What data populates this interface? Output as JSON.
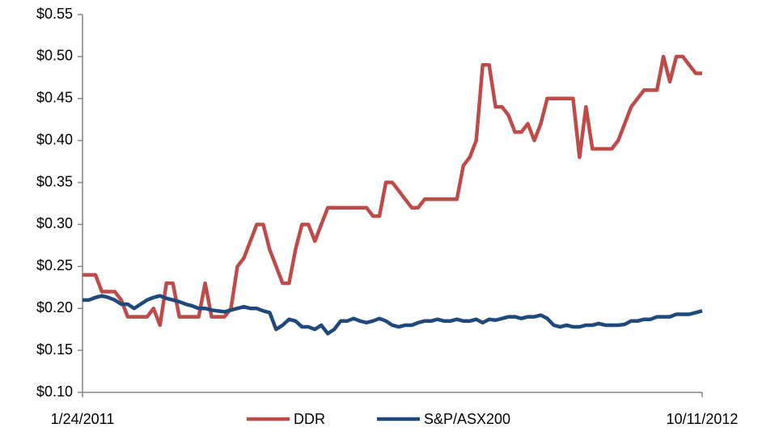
{
  "chart_data": {
    "type": "line",
    "categories": [
      "1/24/2011",
      null,
      null,
      null,
      null,
      null,
      null,
      null,
      null,
      null,
      null,
      null,
      null,
      null,
      null,
      null,
      null,
      null,
      null,
      null,
      null,
      null,
      null,
      null,
      null,
      null,
      null,
      null,
      null,
      null,
      null,
      null,
      null,
      null,
      null,
      null,
      null,
      null,
      null,
      null,
      null,
      null,
      null,
      null,
      null,
      null,
      null,
      null,
      null,
      null,
      null,
      null,
      null,
      null,
      null,
      null,
      null,
      null,
      null,
      null,
      null,
      null,
      null,
      null,
      null,
      null,
      null,
      null,
      null,
      null,
      null,
      null,
      null,
      null,
      null,
      null,
      null,
      null,
      null,
      null,
      null,
      null,
      null,
      null,
      null,
      null,
      null,
      null,
      null,
      null,
      null,
      null,
      null,
      null,
      null,
      null,
      "10/11/2012"
    ],
    "series": [
      {
        "name": "DDR",
        "color": "#be4b48",
        "values": [
          0.24,
          0.24,
          0.24,
          0.22,
          0.22,
          0.22,
          0.21,
          0.19,
          0.19,
          0.19,
          0.19,
          0.2,
          0.18,
          0.23,
          0.23,
          0.19,
          0.19,
          0.19,
          0.19,
          0.23,
          0.19,
          0.19,
          0.19,
          0.2,
          0.25,
          0.26,
          0.28,
          0.3,
          0.3,
          0.27,
          0.25,
          0.23,
          0.23,
          0.27,
          0.3,
          0.3,
          0.28,
          0.3,
          0.32,
          0.32,
          0.32,
          0.32,
          0.32,
          0.32,
          0.32,
          0.31,
          0.31,
          0.35,
          0.35,
          0.34,
          0.33,
          0.32,
          0.32,
          0.33,
          0.33,
          0.33,
          0.33,
          0.33,
          0.33,
          0.37,
          0.38,
          0.4,
          0.49,
          0.49,
          0.44,
          0.44,
          0.43,
          0.41,
          0.41,
          0.42,
          0.4,
          0.42,
          0.45,
          0.45,
          0.45,
          0.45,
          0.45,
          0.38,
          0.44,
          0.39,
          0.39,
          0.39,
          0.39,
          0.4,
          0.42,
          0.44,
          0.45,
          0.46,
          0.46,
          0.46,
          0.5,
          0.47,
          0.5,
          0.5,
          0.49,
          0.48,
          0.48
        ]
      },
      {
        "name": "S&P/ASX200",
        "color": "#1f497d",
        "values": [
          0.21,
          0.21,
          0.213,
          0.215,
          0.213,
          0.21,
          0.205,
          0.205,
          0.2,
          0.205,
          0.21,
          0.213,
          0.215,
          0.212,
          0.21,
          0.208,
          0.205,
          0.203,
          0.2,
          0.2,
          0.198,
          0.197,
          0.196,
          0.198,
          0.2,
          0.202,
          0.2,
          0.2,
          0.197,
          0.195,
          0.175,
          0.18,
          0.187,
          0.185,
          0.178,
          0.178,
          0.175,
          0.18,
          0.17,
          0.175,
          0.185,
          0.185,
          0.188,
          0.185,
          0.183,
          0.185,
          0.188,
          0.185,
          0.18,
          0.178,
          0.18,
          0.18,
          0.183,
          0.185,
          0.185,
          0.187,
          0.185,
          0.185,
          0.187,
          0.185,
          0.185,
          0.187,
          0.183,
          0.187,
          0.186,
          0.188,
          0.19,
          0.19,
          0.188,
          0.19,
          0.19,
          0.192,
          0.188,
          0.18,
          0.178,
          0.18,
          0.178,
          0.178,
          0.18,
          0.18,
          0.182,
          0.18,
          0.18,
          0.18,
          0.181,
          0.185,
          0.185,
          0.187,
          0.187,
          0.19,
          0.19,
          0.19,
          0.193,
          0.193,
          0.193,
          0.195,
          0.197
        ]
      }
    ],
    "ylim": [
      0.1,
      0.55
    ],
    "yticks": [
      {
        "value": 0.1,
        "label": "$0.10"
      },
      {
        "value": 0.15,
        "label": "$0.15"
      },
      {
        "value": 0.2,
        "label": "$0.20"
      },
      {
        "value": 0.25,
        "label": "$0.25"
      },
      {
        "value": 0.3,
        "label": "$0.30"
      },
      {
        "value": 0.35,
        "label": "$0.35"
      },
      {
        "value": 0.4,
        "label": "$0.40"
      },
      {
        "value": 0.45,
        "label": "$0.45"
      },
      {
        "value": 0.5,
        "label": "$0.50"
      },
      {
        "value": 0.55,
        "label": "$0.55"
      }
    ],
    "grid": false,
    "legend": "bottom"
  }
}
